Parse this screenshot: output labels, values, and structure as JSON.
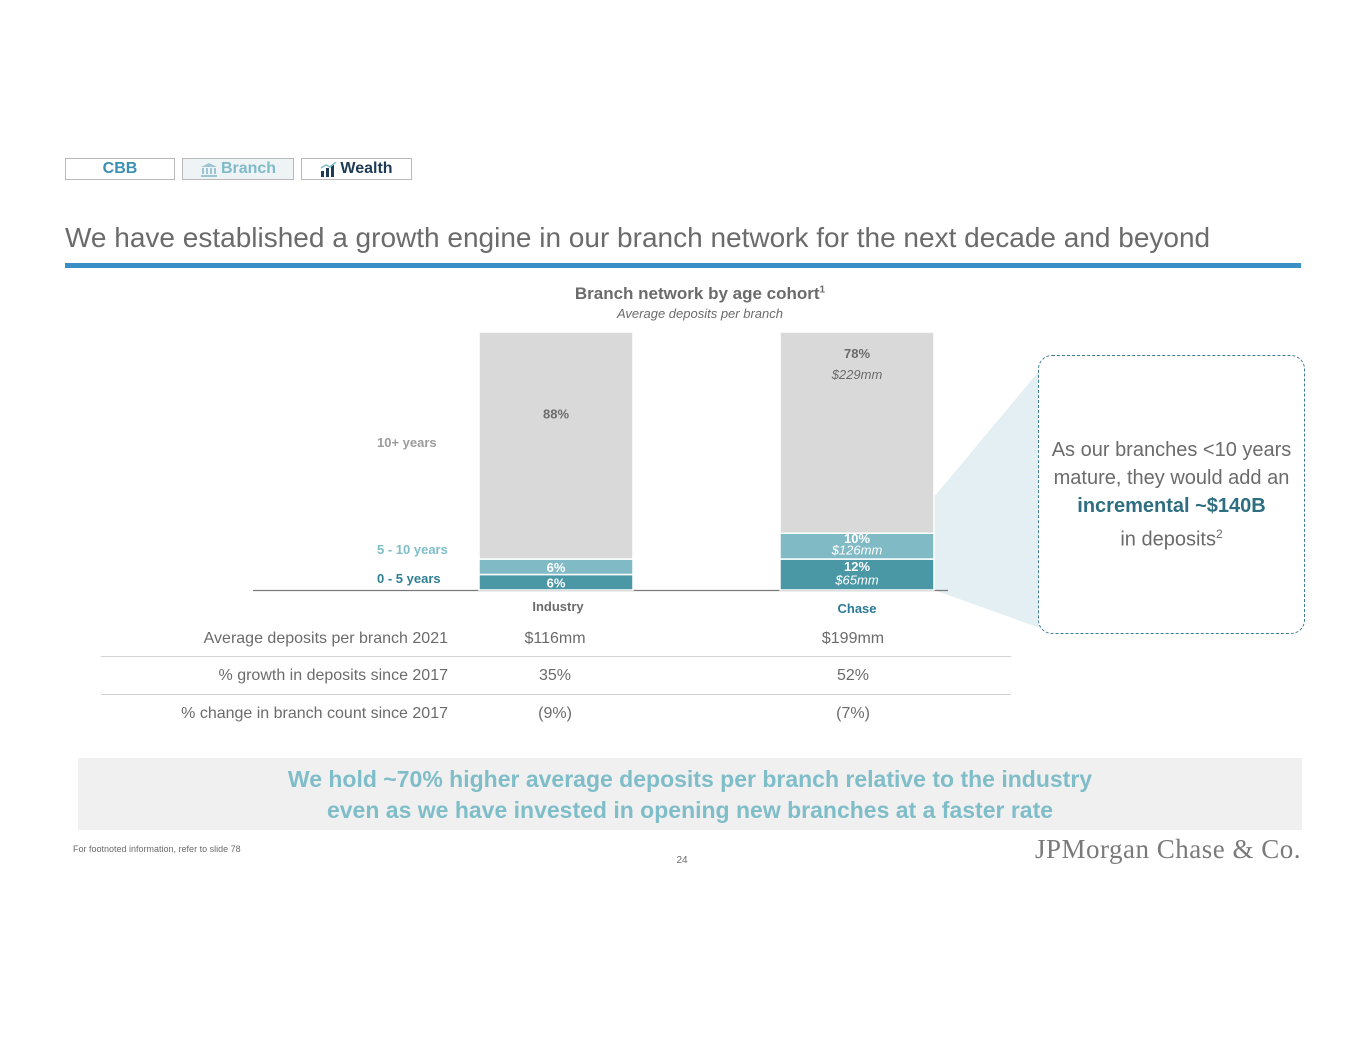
{
  "tabs": [
    {
      "label": "CBB"
    },
    {
      "label": "Branch"
    },
    {
      "label": "Wealth"
    }
  ],
  "page_title": "We have established a growth engine in our branch network for the next decade and beyond",
  "chart_data": {
    "type": "bar",
    "stacked": true,
    "title": "Branch network by age cohort",
    "title_footnote": "1",
    "subtitle": "Average deposits per branch",
    "categories": [
      "Industry",
      "Chase"
    ],
    "series": [
      {
        "name": "0 - 5 years",
        "values": [
          6,
          12
        ],
        "labels": [
          "6%",
          "12%"
        ],
        "amount_labels": [
          "",
          "$65mm"
        ],
        "color": "#4a97a6"
      },
      {
        "name": "5 - 10 years",
        "values": [
          6,
          10
        ],
        "labels": [
          "6%",
          "10%"
        ],
        "amount_labels": [
          "",
          "$126mm"
        ],
        "color": "#80bac4"
      },
      {
        "name": "10+ years",
        "values": [
          88,
          78
        ],
        "labels": [
          "88%",
          "78%"
        ],
        "amount_labels": [
          "",
          "$229mm"
        ],
        "color": "#d9d9d9"
      }
    ],
    "series_label_colors": [
      "#2e7f93",
      "#7fbdc9",
      "#9c9c9c"
    ],
    "category_label_colors": [
      "#6b6b6b",
      "#2a7a96"
    ],
    "ylim": [
      0,
      100
    ],
    "grid": false
  },
  "stats": {
    "rows": [
      {
        "label": "Average deposits per branch 2021",
        "industry": "$116mm",
        "chase": "$199mm"
      },
      {
        "label": "% growth in deposits since 2017",
        "industry": "35%",
        "chase": "52%"
      },
      {
        "label": "% change in branch count since 2017",
        "industry": "(9%)",
        "chase": "(7%)"
      }
    ]
  },
  "callout": {
    "line1": "As our branches <10 years mature, they would add an",
    "highlight": "incremental ~$140B",
    "line2": "in deposits",
    "footnote": "2"
  },
  "banner": {
    "line1": "We hold ~70% higher average deposits per branch relative to the industry",
    "line2": "even as we have invested in opening new branches at a faster rate"
  },
  "footnote": "For footnoted information, refer to slide 78",
  "page_number": "24",
  "logo": "JPMorgan Chase & Co."
}
